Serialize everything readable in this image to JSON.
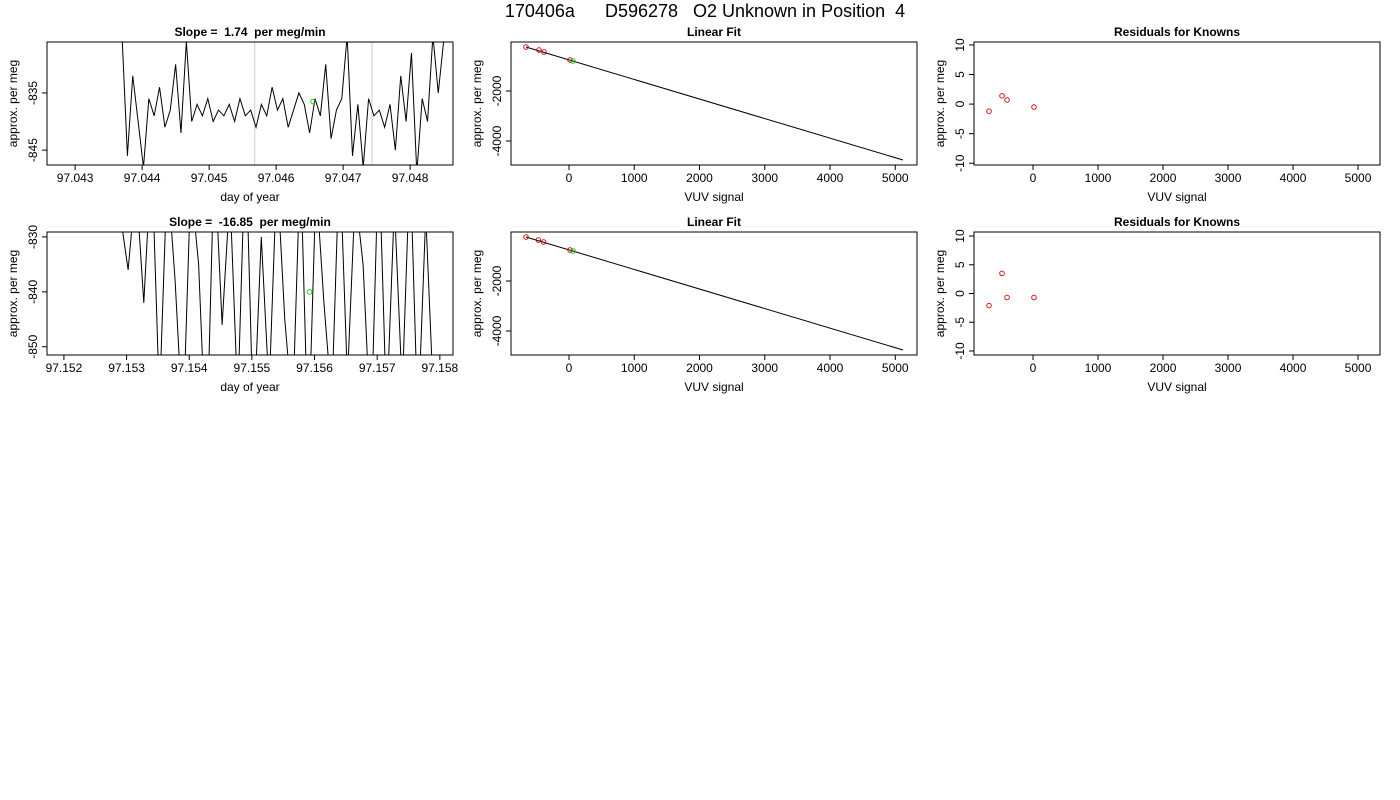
{
  "title": "170406a      D596278   O2 Unknown in Position  4",
  "chart_data": [
    {
      "type": "line",
      "title": "Slope =  1.74  per meg/min",
      "xlabel": "day of year",
      "ylabel": "approx. per meg",
      "xlim": [
        97.04258,
        97.04864
      ],
      "ylim": [
        -847.6,
        -826.1
      ],
      "xticks": [
        97.043,
        97.044,
        97.045,
        97.046,
        97.047,
        97.048
      ],
      "yticks": [
        -845,
        -835
      ],
      "color": "#000000",
      "x": [
        97.0437,
        97.04378,
        97.04386,
        97.04394,
        97.04402,
        97.0441,
        97.04418,
        97.04426,
        97.04434,
        97.04442,
        97.0445,
        97.04458,
        97.04466,
        97.04474,
        97.04482,
        97.0449,
        97.04498,
        97.04506,
        97.04514,
        97.04522,
        97.0453,
        97.04538,
        97.04546,
        97.04554,
        97.04562,
        97.0457,
        97.04578,
        97.04586,
        97.04594,
        97.04602,
        97.0461,
        97.04618,
        97.04626,
        97.04634,
        97.04642,
        97.0465,
        97.04658,
        97.04666,
        97.04674,
        97.04682,
        97.0469,
        97.04698,
        97.04706,
        97.04714,
        97.04722,
        97.0473,
        97.04738,
        97.04746,
        97.04754,
        97.04762,
        97.0477,
        97.04778,
        97.04786,
        97.04794,
        97.04802,
        97.0481,
        97.04818,
        97.04826,
        97.04834,
        97.04842,
        97.0485
      ],
      "values": [
        -825,
        -846,
        -832,
        -840,
        -848,
        -836,
        -839,
        -834,
        -841,
        -838,
        -830,
        -842,
        -826,
        -840,
        -837,
        -839,
        -836,
        -840,
        -838,
        -839,
        -837,
        -840,
        -836,
        -839,
        -838,
        -841,
        -837,
        -839,
        -834,
        -838,
        -836,
        -841,
        -838,
        -835,
        -837,
        -842,
        -836,
        -839,
        -830,
        -843,
        -838,
        -836,
        -825,
        -846,
        -837,
        -848,
        -836,
        -839,
        -838,
        -841,
        -837,
        -845,
        -832,
        -840,
        -828,
        -849,
        -836,
        -840,
        -825,
        -835,
        -826
      ],
      "vlines": {
        "x": [
          97.04568,
          97.04743
        ],
        "color": "#cccccc"
      },
      "highlight": {
        "x": [
          97.04655
        ],
        "values": [
          -836.5
        ],
        "color": "#00cc00"
      }
    },
    {
      "type": "fit",
      "title": "Linear Fit",
      "xlabel": "VUV signal",
      "ylabel": "approx. per meg",
      "xlim": [
        -889,
        5333
      ],
      "ylim": [
        -4960,
        -40
      ],
      "xticks": [
        0,
        1000,
        2000,
        3000,
        4000,
        5000
      ],
      "yticks": [
        -4000,
        -2000
      ],
      "fit_line": {
        "x": [
          -659,
          5118
        ],
        "values": [
          -240,
          -4760
        ],
        "color": "#000000"
      },
      "points": {
        "x": [
          -659,
          -460,
          -383,
          15
        ],
        "values": [
          -240,
          -360,
          -440,
          -760
        ],
        "color": "#cc0000"
      },
      "highlight": {
        "x": [
          61
        ],
        "values": [
          -800
        ],
        "color": "#00cc00"
      }
    },
    {
      "type": "scatter",
      "title": "Residuals for Knowns",
      "xlabel": "VUV signal",
      "ylabel": "approx. per meg",
      "xlim": [
        -908,
        5338
      ],
      "ylim": [
        -10.3,
        10.5
      ],
      "xticks": [
        0,
        1000,
        2000,
        3000,
        4000,
        5000
      ],
      "yticks": [
        -10,
        -5,
        0,
        5,
        10
      ],
      "points": {
        "x": [
          -677,
          -477,
          -400,
          15
        ],
        "values": [
          -1.2,
          1.4,
          0.7,
          -0.5
        ],
        "color": "#cc0000"
      }
    },
    {
      "type": "line",
      "title": "Slope =  -16.85  per meg/min",
      "xlabel": "day of year",
      "ylabel": "approx. per meg",
      "xlim": [
        97.15173,
        97.15821
      ],
      "ylim": [
        -851.5,
        -829.1
      ],
      "xticks": [
        97.152,
        97.153,
        97.154,
        97.155,
        97.156,
        97.157,
        97.158
      ],
      "yticks": [
        -850,
        -840,
        -830
      ],
      "color": "#000000",
      "x": [
        97.1529,
        97.153025,
        97.15315,
        97.153275,
        97.1534,
        97.153525,
        97.15365,
        97.153775,
        97.1539,
        97.154025,
        97.15415,
        97.154275,
        97.1544,
        97.154525,
        97.15465,
        97.154775,
        97.1549,
        97.155025,
        97.15515,
        97.155275,
        97.1554,
        97.155525,
        97.15565,
        97.155775,
        97.1559,
        97.156025,
        97.15615,
        97.156275,
        97.1564,
        97.156525,
        97.15665,
        97.156775,
        97.1569,
        97.157025,
        97.15715,
        97.157275,
        97.1574,
        97.157525,
        97.15765,
        97.157775,
        97.1579
      ],
      "values": [
        -826,
        -836,
        -820,
        -842,
        -815,
        -860,
        -818,
        -838,
        -865,
        -820,
        -835,
        -870,
        -815,
        -846,
        -822,
        -860,
        -812,
        -865,
        -830,
        -858,
        -818,
        -845,
        -862,
        -816,
        -868,
        -820,
        -842,
        -860,
        -815,
        -856,
        -822,
        -835,
        -866,
        -814,
        -862,
        -824,
        -858,
        -816,
        -864,
        -826,
        -860
      ],
      "highlight": {
        "x": [
          97.15592
        ],
        "values": [
          -840
        ],
        "color": "#00cc00"
      }
    },
    {
      "type": "fit",
      "title": "Linear Fit",
      "xlabel": "VUV signal",
      "ylabel": "approx. per meg",
      "xlim": [
        -889,
        5333
      ],
      "ylim": [
        -4960,
        -40
      ],
      "xticks": [
        0,
        1000,
        2000,
        3000,
        4000,
        5000
      ],
      "yticks": [
        -4000,
        -2000
      ],
      "fit_line": {
        "x": [
          -659,
          5118
        ],
        "values": [
          -240,
          -4760
        ],
        "color": "#000000"
      },
      "points": {
        "x": [
          -659,
          -470,
          -390,
          15
        ],
        "values": [
          -240,
          -360,
          -440,
          -760
        ],
        "color": "#cc0000"
      },
      "highlight": {
        "x": [
          61
        ],
        "values": [
          -800
        ],
        "color": "#00cc00"
      }
    },
    {
      "type": "scatter",
      "title": "Residuals for Knowns",
      "xlabel": "VUV signal",
      "ylabel": "approx. per meg",
      "xlim": [
        -908,
        5338
      ],
      "ylim": [
        -10.7,
        10.7
      ],
      "xticks": [
        0,
        1000,
        2000,
        3000,
        4000,
        5000
      ],
      "yticks": [
        -10,
        -5,
        0,
        5,
        10
      ],
      "points": {
        "x": [
          -677,
          -477,
          -400,
          15
        ],
        "values": [
          -2.1,
          3.5,
          -0.7,
          -0.7
        ],
        "color": "#cc0000"
      }
    }
  ]
}
